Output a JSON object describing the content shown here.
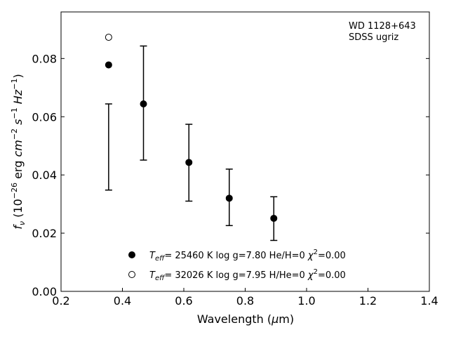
{
  "chart_data": {
    "type": "scatter",
    "title": "",
    "annotation": [
      "WD 1128+643",
      "SDSS ugriz"
    ],
    "xlabel": "Wavelength (μm)",
    "ylabel": "f_ν (10^-26 erg cm^-2 s^-1 Hz^-1)",
    "xlim": [
      0.2,
      1.4
    ],
    "ylim": [
      0.0,
      0.096
    ],
    "xticks": [
      0.2,
      0.4,
      0.6,
      0.8,
      1.0,
      1.2,
      1.4
    ],
    "xtick_labels": [
      "0.2",
      "0.4",
      "0.6",
      "0.8",
      "1.0",
      "1.2",
      "1.4"
    ],
    "yticks": [
      0.0,
      0.02,
      0.04,
      0.06,
      0.08
    ],
    "ytick_labels": [
      "0.00",
      "0.02",
      "0.04",
      "0.06",
      "0.08"
    ],
    "grid": false,
    "legend_position": "bottom-center",
    "observed": {
      "x": [
        0.3551,
        0.4686,
        0.6166,
        0.748,
        0.8932
      ],
      "y": [
        0.0496,
        0.0647,
        0.0442,
        0.0323,
        0.025
      ],
      "yerr": [
        0.0148,
        0.0196,
        0.0132,
        0.0097,
        0.0075
      ]
    },
    "series": [
      {
        "label": "T_eff= 25460 K  log g=7.80  He/H=0  χ²=0.00",
        "marker": "filled-circle",
        "color": "#000000",
        "x": [
          0.3551,
          0.4686,
          0.6166,
          0.748,
          0.8932
        ],
        "y": [
          0.0778,
          0.0644,
          0.0443,
          0.032,
          0.0251
        ]
      },
      {
        "label": "T_eff= 32026 K  log g=7.95  H/He=0  χ²=0.00",
        "marker": "open-circle",
        "color": "#000000",
        "x": [
          0.3551
        ],
        "y": [
          0.0873
        ]
      }
    ]
  }
}
